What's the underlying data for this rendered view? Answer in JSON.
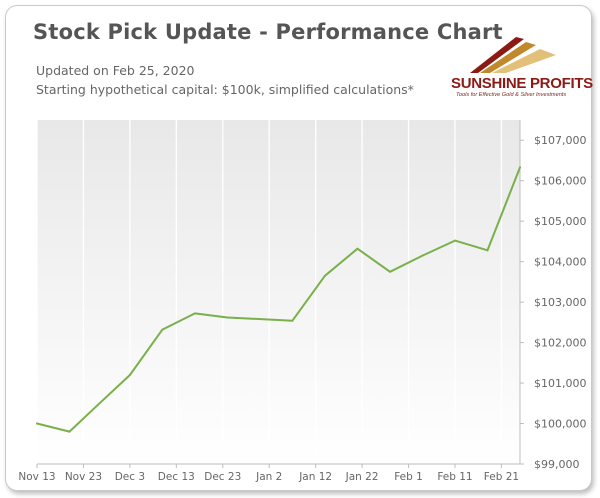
{
  "header": {
    "title": "Stock Pick Update - Performance Chart",
    "updated": "Updated on Feb 25, 2020",
    "capital": "Starting hypothetical capital: $100k, simplified calculations*"
  },
  "logo": {
    "name": "SUNSHINE PROFITS",
    "tagline": "Tools for Effective Gold & Silver Investments",
    "colors": [
      "#8b1a14",
      "#c08a2c",
      "#e2c07a"
    ]
  },
  "chart_data": {
    "type": "line",
    "title": "Stock Pick Update - Performance Chart",
    "xlabel": "",
    "ylabel": "",
    "x_ticks": [
      "Nov 13",
      "Nov 23",
      "Dec 3",
      "Dec 13",
      "Dec 23",
      "Jan 2",
      "Jan 12",
      "Jan 22",
      "Feb 1",
      "Feb 11",
      "Feb 21"
    ],
    "y_ticks": [
      "$99,000",
      "$100,000",
      "$101,000",
      "$102,000",
      "$103,000",
      "$104,000",
      "$105,000",
      "$106,000",
      "$107,000"
    ],
    "ylim": [
      99000,
      107500
    ],
    "xlim": [
      "2019-11-13",
      "2020-02-25"
    ],
    "grid": "vertical",
    "line_color": "#78b04a",
    "series": [
      {
        "values": [
          {
            "x": "2019-11-13",
            "y": 100000
          },
          {
            "x": "2019-11-20",
            "y": 99800
          },
          {
            "x": "2019-11-26",
            "y": 100450
          },
          {
            "x": "2019-12-03",
            "y": 101200
          },
          {
            "x": "2019-12-10",
            "y": 102320
          },
          {
            "x": "2019-12-17",
            "y": 102720
          },
          {
            "x": "2019-12-24",
            "y": 102620
          },
          {
            "x": "2020-01-07",
            "y": 102540
          },
          {
            "x": "2020-01-14",
            "y": 103650
          },
          {
            "x": "2020-01-21",
            "y": 104320
          },
          {
            "x": "2020-01-28",
            "y": 103750
          },
          {
            "x": "2020-02-04",
            "y": 104150
          },
          {
            "x": "2020-02-11",
            "y": 104520
          },
          {
            "x": "2020-02-18",
            "y": 104280
          },
          {
            "x": "2020-02-25",
            "y": 106330
          }
        ]
      }
    ]
  }
}
